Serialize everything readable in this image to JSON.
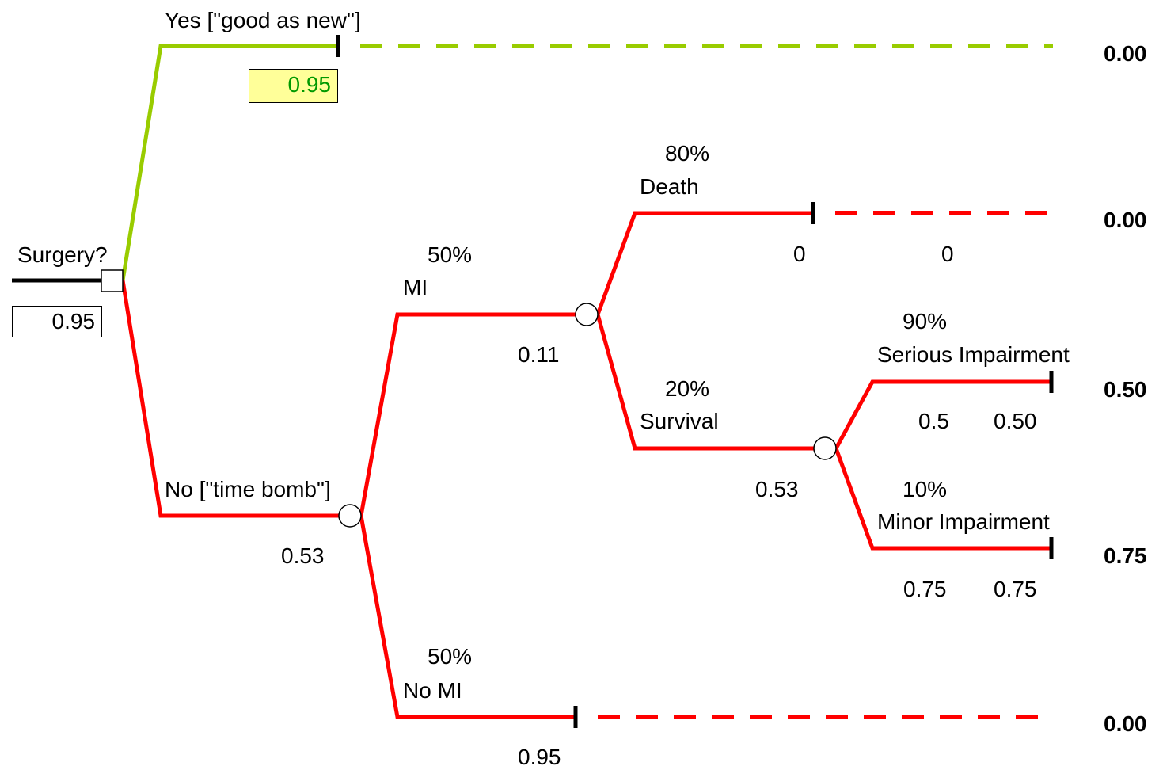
{
  "colors": {
    "optimal_branch": "#99cc00",
    "other_branch": "#ff0000",
    "root_line": "#000000",
    "highlight_box_bg": "#ffff99",
    "highlight_box_text": "#009900"
  },
  "root": {
    "node_type": "decision",
    "label": "Surgery?",
    "value": "0.95"
  },
  "branches": {
    "yes": {
      "label": "Yes [\"good as new\"]",
      "value": "0.95",
      "terminal": "0.00"
    },
    "no": {
      "label": "No [\"time bomb\"]",
      "value": "0.53"
    },
    "mi": {
      "prob": "50%",
      "label": "MI",
      "value": "0.11"
    },
    "no_mi": {
      "prob": "50%",
      "label": "No MI",
      "value": "0.95",
      "terminal": "0.00"
    },
    "death": {
      "prob": "80%",
      "label": "Death",
      "value": "0",
      "payoff": "0",
      "terminal": "0.00"
    },
    "survival": {
      "prob": "20%",
      "label": "Survival",
      "value": "0.53"
    },
    "serious": {
      "prob": "90%",
      "label": "Serious Impairment",
      "value": "0.5",
      "payoff": "0.50",
      "terminal": "0.50"
    },
    "minor": {
      "prob": "10%",
      "label": "Minor Impairment",
      "value": "0.75",
      "payoff": "0.75",
      "terminal": "0.75"
    }
  }
}
